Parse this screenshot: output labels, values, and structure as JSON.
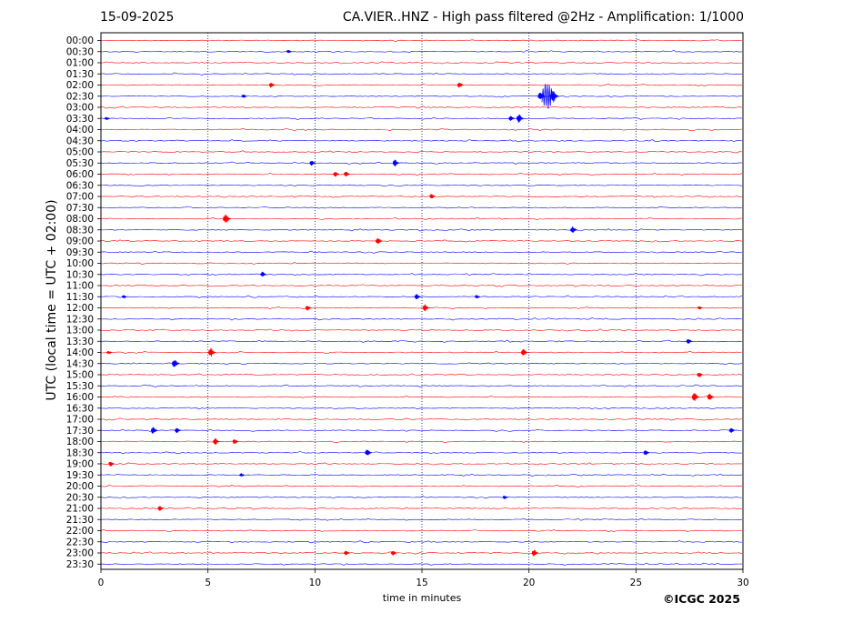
{
  "header": {
    "date": "15-09-2025",
    "station_title": "CA.VIER..HNZ - High pass filtered @2Hz - Amplification: 1/1000"
  },
  "footer": {
    "copyright": "©ICGC 2025"
  },
  "chart_data": {
    "type": "line",
    "title": "CA.VIER..HNZ - High pass filtered @2Hz - Amplification: 1/1000",
    "xlabel": "time in minutes",
    "ylabel": "UTC (local time = UTC + 02:00)",
    "xlim": [
      0,
      30
    ],
    "xticks": [
      0,
      5,
      10,
      15,
      20,
      25,
      30
    ],
    "x_gridlines": [
      5,
      10,
      15,
      20,
      25
    ],
    "grid": "vertical dotted",
    "colors": {
      "even_trace": "#ff0000",
      "odd_trace": "#0000ff",
      "grid": "#000080"
    },
    "rows": [
      "00:00",
      "00:30",
      "01:00",
      "01:30",
      "02:00",
      "02:30",
      "03:00",
      "03:30",
      "04:00",
      "04:30",
      "05:00",
      "05:30",
      "06:00",
      "06:30",
      "07:00",
      "07:30",
      "08:00",
      "08:30",
      "09:00",
      "09:30",
      "10:00",
      "10:30",
      "11:00",
      "11:30",
      "12:00",
      "12:30",
      "13:00",
      "13:30",
      "14:00",
      "14:30",
      "15:00",
      "15:30",
      "16:00",
      "16:30",
      "17:00",
      "17:30",
      "18:00",
      "18:30",
      "19:00",
      "19:30",
      "20:00",
      "20:30",
      "21:00",
      "21:30",
      "22:00",
      "22:30",
      "23:00",
      "23:30"
    ],
    "events": [
      {
        "row": "00:30",
        "minute": 8.8,
        "amplitude": 2
      },
      {
        "row": "02:00",
        "minute": 8.0,
        "amplitude": 3
      },
      {
        "row": "02:00",
        "minute": 16.8,
        "amplitude": 3
      },
      {
        "row": "02:30",
        "minute": 6.7,
        "amplitude": 2
      },
      {
        "row": "02:30",
        "minute": 20.6,
        "amplitude": 5
      },
      {
        "row": "02:30",
        "minute": 21.0,
        "amplitude": 18
      },
      {
        "row": "02:30",
        "minute": 21.2,
        "amplitude": 7
      },
      {
        "row": "03:30",
        "minute": 0.3,
        "amplitude": 2
      },
      {
        "row": "03:30",
        "minute": 19.2,
        "amplitude": 3
      },
      {
        "row": "03:30",
        "minute": 19.6,
        "amplitude": 5
      },
      {
        "row": "05:30",
        "minute": 9.9,
        "amplitude": 3
      },
      {
        "row": "05:30",
        "minute": 13.8,
        "amplitude": 4
      },
      {
        "row": "06:00",
        "minute": 11.0,
        "amplitude": 3
      },
      {
        "row": "06:00",
        "minute": 11.5,
        "amplitude": 3
      },
      {
        "row": "07:00",
        "minute": 15.5,
        "amplitude": 3
      },
      {
        "row": "08:00",
        "minute": 5.9,
        "amplitude": 6
      },
      {
        "row": "08:30",
        "minute": 22.1,
        "amplitude": 4
      },
      {
        "row": "09:00",
        "minute": 13.0,
        "amplitude": 4
      },
      {
        "row": "10:30",
        "minute": 7.6,
        "amplitude": 3
      },
      {
        "row": "11:30",
        "minute": 1.1,
        "amplitude": 2
      },
      {
        "row": "11:30",
        "minute": 14.8,
        "amplitude": 3
      },
      {
        "row": "11:30",
        "minute": 17.6,
        "amplitude": 2
      },
      {
        "row": "12:00",
        "minute": 9.7,
        "amplitude": 3
      },
      {
        "row": "12:00",
        "minute": 15.2,
        "amplitude": 4
      },
      {
        "row": "12:00",
        "minute": 28.0,
        "amplitude": 2
      },
      {
        "row": "13:30",
        "minute": 27.5,
        "amplitude": 3
      },
      {
        "row": "14:00",
        "minute": 0.4,
        "amplitude": 2
      },
      {
        "row": "14:00",
        "minute": 5.2,
        "amplitude": 5
      },
      {
        "row": "14:00",
        "minute": 19.8,
        "amplitude": 4
      },
      {
        "row": "14:30",
        "minute": 3.5,
        "amplitude": 5
      },
      {
        "row": "15:00",
        "minute": 28.0,
        "amplitude": 3
      },
      {
        "row": "16:00",
        "minute": 27.8,
        "amplitude": 5
      },
      {
        "row": "16:00",
        "minute": 28.5,
        "amplitude": 4
      },
      {
        "row": "17:30",
        "minute": 2.5,
        "amplitude": 4
      },
      {
        "row": "17:30",
        "minute": 3.6,
        "amplitude": 3
      },
      {
        "row": "17:30",
        "minute": 29.5,
        "amplitude": 3
      },
      {
        "row": "18:00",
        "minute": 5.4,
        "amplitude": 4
      },
      {
        "row": "18:00",
        "minute": 6.3,
        "amplitude": 3
      },
      {
        "row": "18:30",
        "minute": 12.5,
        "amplitude": 4
      },
      {
        "row": "18:30",
        "minute": 25.5,
        "amplitude": 3
      },
      {
        "row": "19:00",
        "minute": 0.5,
        "amplitude": 3
      },
      {
        "row": "19:30",
        "minute": 6.6,
        "amplitude": 2
      },
      {
        "row": "20:30",
        "minute": 18.9,
        "amplitude": 2
      },
      {
        "row": "21:00",
        "minute": 2.8,
        "amplitude": 3
      },
      {
        "row": "23:00",
        "minute": 11.5,
        "amplitude": 3
      },
      {
        "row": "23:00",
        "minute": 13.7,
        "amplitude": 3
      },
      {
        "row": "23:00",
        "minute": 20.3,
        "amplitude": 4
      }
    ]
  }
}
